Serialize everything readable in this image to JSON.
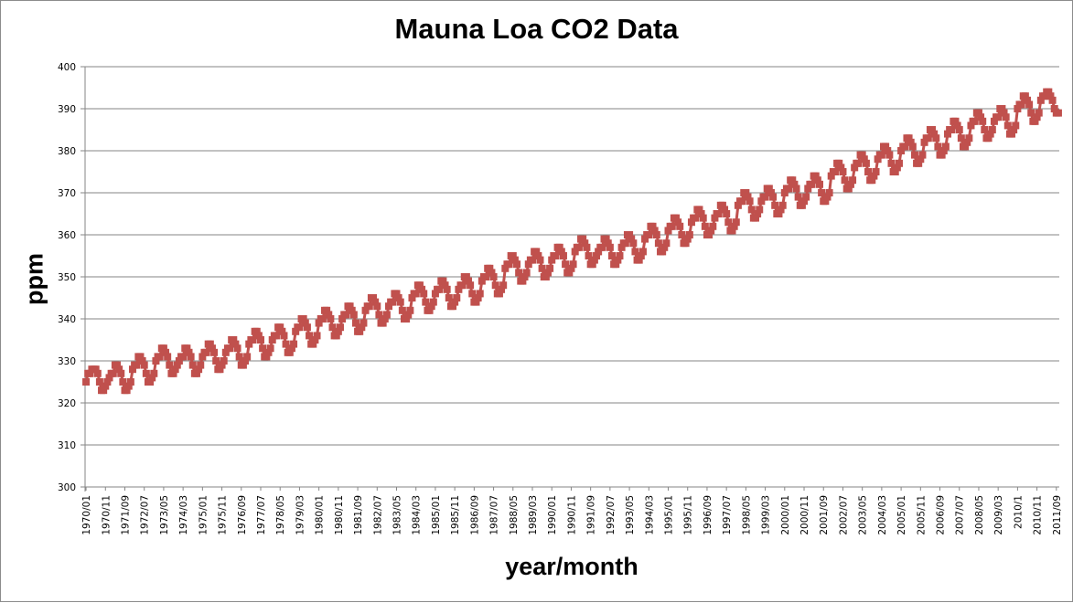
{
  "chart_data": {
    "type": "line",
    "title": "Mauna Loa CO2 Data",
    "xlabel": "year/month",
    "ylabel": "ppm",
    "ylim": [
      300,
      400
    ],
    "yticks": [
      "300",
      "310",
      "320",
      "330",
      "340",
      "350",
      "360",
      "370",
      "380",
      "390",
      "400"
    ],
    "grid": "horizontal",
    "legend": "none",
    "marker": "square",
    "color": "#c0504d",
    "x_start": "1970/01",
    "x_step": "1 month",
    "xtick_labels": [
      "1970/01",
      "1970/11",
      "1971/09",
      "1972/07",
      "1973/05",
      "1974/03",
      "1975/01",
      "1975/11",
      "1976/09",
      "1977/07",
      "1978/05",
      "1979/03",
      "1980/01",
      "1980/11",
      "1981/09",
      "1982/07",
      "1983/05",
      "1984/03",
      "1985/01",
      "1985/11",
      "1986/09",
      "1987/07",
      "1988/05",
      "1989/03",
      "1990/01",
      "1990/11",
      "1991/09",
      "1992/07",
      "1993/05",
      "1994/03",
      "1995/01",
      "1995/11",
      "1996/09",
      "1997/07",
      "1998/05",
      "1999/03",
      "2000/01",
      "2000/11",
      "2001/09",
      "2002/07",
      "2003/05",
      "2004/03",
      "2005/01",
      "2005/11",
      "2006/09",
      "2007/07",
      "2008/05",
      "2009/03",
      "2010/1",
      "2010/11",
      "2011/09"
    ],
    "monthly_values_by_year": {
      "1970": [
        325,
        327,
        327,
        328,
        328,
        328,
        327,
        325,
        323,
        323,
        324,
        325
      ],
      "1971": [
        326,
        327,
        327,
        329,
        329,
        328,
        327,
        325,
        323,
        323,
        324,
        325
      ],
      "1972": [
        328,
        329,
        329,
        331,
        331,
        330,
        329,
        327,
        325,
        325,
        326,
        327
      ],
      "1973": [
        330,
        331,
        331,
        333,
        333,
        332,
        331,
        329,
        327,
        327,
        328,
        329
      ],
      "1974": [
        330,
        331,
        331,
        333,
        333,
        332,
        331,
        329,
        327,
        327,
        328,
        329
      ],
      "1975": [
        331,
        332,
        332,
        334,
        334,
        333,
        332,
        330,
        328,
        328,
        329,
        330
      ],
      "1976": [
        332,
        333,
        333,
        335,
        335,
        334,
        333,
        331,
        329,
        329,
        330,
        331
      ],
      "1977": [
        334,
        335,
        335,
        337,
        337,
        336,
        335,
        333,
        331,
        331,
        332,
        333
      ],
      "1978": [
        335,
        336,
        336,
        338,
        338,
        337,
        336,
        334,
        332,
        332,
        333,
        334
      ],
      "1979": [
        337,
        338,
        338,
        340,
        340,
        339,
        338,
        336,
        334,
        334,
        335,
        336
      ],
      "1980": [
        339,
        340,
        340,
        342,
        342,
        341,
        340,
        338,
        336,
        336,
        337,
        338
      ],
      "1981": [
        340,
        341,
        341,
        343,
        343,
        342,
        341,
        339,
        337,
        337,
        338,
        339
      ],
      "1982": [
        342,
        343,
        343,
        345,
        345,
        344,
        343,
        341,
        339,
        339,
        340,
        341
      ],
      "1983": [
        343,
        344,
        344,
        346,
        346,
        345,
        344,
        342,
        340,
        340,
        341,
        342
      ],
      "1984": [
        345,
        346,
        346,
        348,
        348,
        347,
        346,
        344,
        342,
        342,
        343,
        344
      ],
      "1985": [
        346,
        347,
        347,
        349,
        349,
        348,
        347,
        345,
        343,
        343,
        344,
        345
      ],
      "1986": [
        347,
        348,
        348,
        350,
        350,
        349,
        348,
        346,
        344,
        344,
        345,
        346
      ],
      "1987": [
        349,
        350,
        350,
        352,
        352,
        351,
        350,
        348,
        346,
        346,
        347,
        348
      ],
      "1988": [
        352,
        353,
        353,
        355,
        355,
        354,
        353,
        351,
        349,
        349,
        350,
        351
      ],
      "1989": [
        353,
        354,
        354,
        356,
        356,
        355,
        354,
        352,
        350,
        350,
        351,
        352
      ],
      "1990": [
        354,
        355,
        355,
        357,
        357,
        356,
        355,
        353,
        351,
        351,
        352,
        353
      ],
      "1991": [
        356,
        357,
        357,
        359,
        359,
        358,
        357,
        355,
        353,
        353,
        354,
        355
      ],
      "1992": [
        356,
        357,
        357,
        359,
        359,
        358,
        357,
        355,
        353,
        353,
        354,
        355
      ],
      "1993": [
        357,
        358,
        358,
        360,
        360,
        359,
        358,
        356,
        354,
        354,
        355,
        356
      ],
      "1994": [
        359,
        360,
        360,
        362,
        362,
        361,
        360,
        358,
        356,
        356,
        357,
        358
      ],
      "1995": [
        361,
        362,
        362,
        364,
        364,
        363,
        362,
        360,
        358,
        358,
        359,
        360
      ],
      "1996": [
        363,
        364,
        364,
        366,
        366,
        365,
        364,
        362,
        360,
        360,
        361,
        362
      ],
      "1997": [
        364,
        365,
        365,
        367,
        367,
        366,
        365,
        363,
        361,
        361,
        362,
        363
      ],
      "1998": [
        367,
        368,
        368,
        370,
        370,
        369,
        368,
        366,
        364,
        364,
        365,
        366
      ],
      "1999": [
        368,
        369,
        369,
        371,
        371,
        370,
        369,
        367,
        365,
        365,
        366,
        367
      ],
      "2000": [
        370,
        371,
        371,
        373,
        373,
        372,
        371,
        369,
        367,
        367,
        368,
        369
      ],
      "2001": [
        371,
        372,
        372,
        374,
        374,
        373,
        372,
        370,
        368,
        368,
        369,
        370
      ],
      "2002": [
        374,
        375,
        375,
        377,
        377,
        376,
        375,
        373,
        371,
        371,
        372,
        373
      ],
      "2003": [
        376,
        377,
        377,
        379,
        379,
        378,
        377,
        375,
        373,
        373,
        374,
        375
      ],
      "2004": [
        378,
        379,
        379,
        381,
        381,
        380,
        379,
        377,
        375,
        375,
        376,
        377
      ],
      "2005": [
        380,
        381,
        381,
        383,
        383,
        382,
        381,
        379,
        377,
        377,
        378,
        379
      ],
      "2006": [
        382,
        383,
        383,
        385,
        385,
        384,
        383,
        381,
        379,
        379,
        380,
        381
      ],
      "2007": [
        384,
        385,
        385,
        387,
        387,
        386,
        385,
        383,
        381,
        381,
        382,
        383
      ],
      "2008": [
        386,
        387,
        387,
        389,
        389,
        388,
        387,
        385,
        383,
        383,
        384,
        385
      ],
      "2009": [
        387,
        388,
        388,
        390,
        390,
        389,
        388,
        386,
        384,
        384,
        385,
        386
      ],
      "2010": [
        390,
        391,
        391,
        393,
        393,
        392,
        391,
        389,
        387,
        387,
        388,
        389
      ],
      "2011": [
        392,
        393,
        393,
        394,
        394,
        393,
        392,
        390,
        389,
        389
      ]
    }
  }
}
